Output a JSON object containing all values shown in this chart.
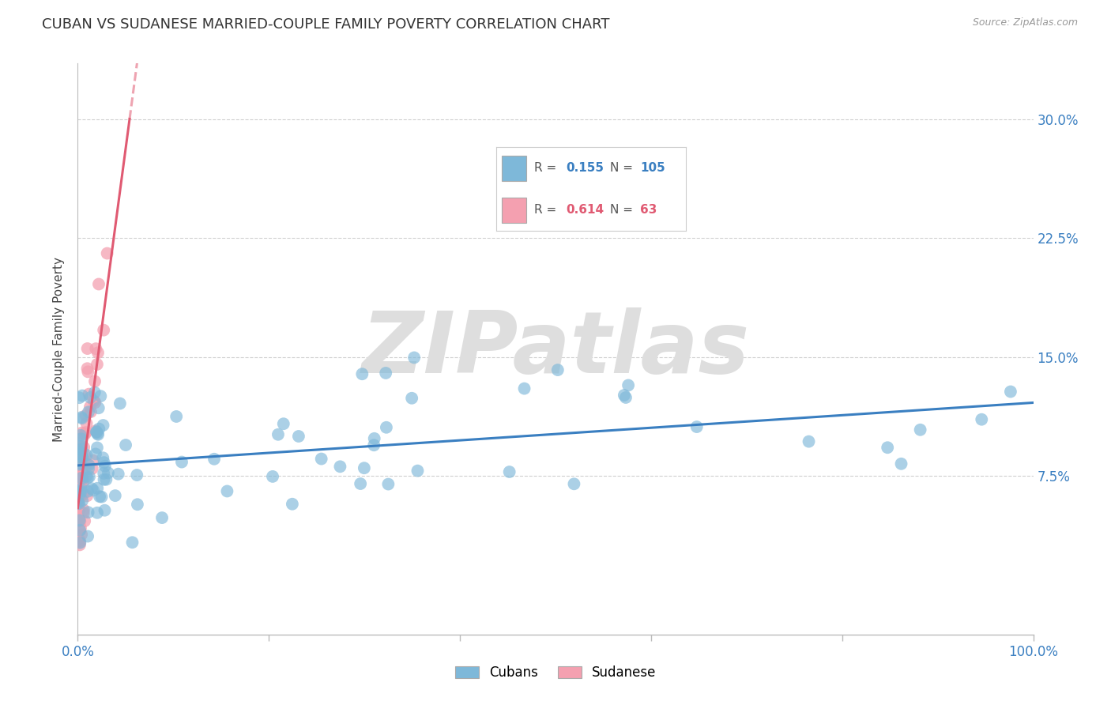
{
  "title": "CUBAN VS SUDANESE MARRIED-COUPLE FAMILY POVERTY CORRELATION CHART",
  "source": "Source: ZipAtlas.com",
  "ylabel": "Married-Couple Family Poverty",
  "yticks": [
    "7.5%",
    "15.0%",
    "22.5%",
    "30.0%"
  ],
  "ytick_vals": [
    0.075,
    0.15,
    0.225,
    0.3
  ],
  "xlim": [
    0.0,
    1.0
  ],
  "ylim": [
    -0.025,
    0.335
  ],
  "blue_color": "#7eb8d9",
  "pink_color": "#f4a0b0",
  "blue_line_color": "#3a7fc1",
  "pink_line_color": "#e05a72",
  "legend_label_cubans": "Cubans",
  "legend_label_sudanese": "Sudanese",
  "watermark_text": "ZIPatlas",
  "blue_R": "0.155",
  "blue_N": "105",
  "pink_R": "0.614",
  "pink_N": "63"
}
